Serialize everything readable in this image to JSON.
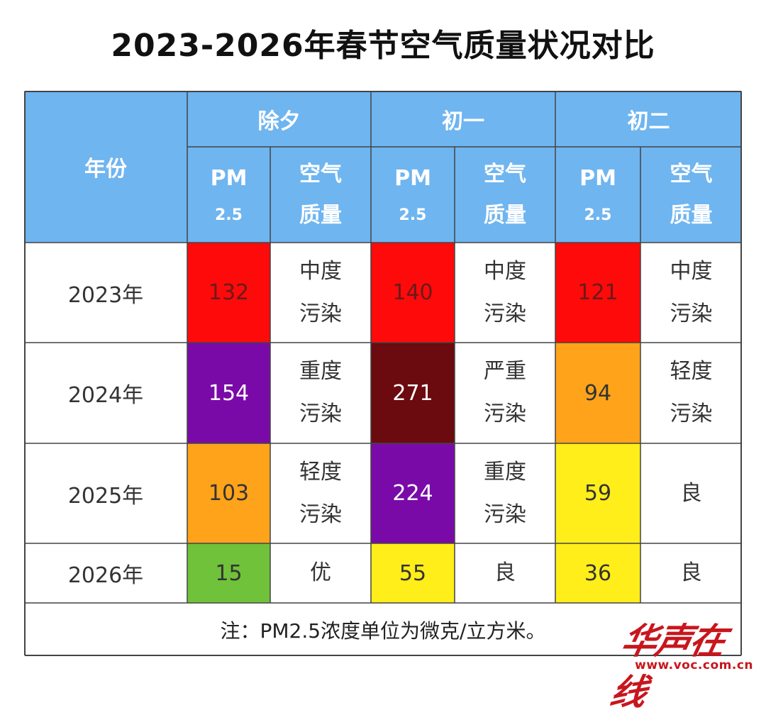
{
  "title": "2023-2026年春节空气质量状况对比",
  "header": {
    "year_label": "年份",
    "groups": [
      "除夕",
      "初一",
      "初二"
    ],
    "pm_label": "PM",
    "pm_sub": "2.5",
    "aq_line1": "空气",
    "aq_line2": "质量"
  },
  "rows": [
    {
      "year": "2023年",
      "cells": [
        {
          "pm": "132",
          "q1": "中度",
          "q2": "污染",
          "color": "#ff0a0a",
          "text": "#6a1a1a"
        },
        {
          "pm": "140",
          "q1": "中度",
          "q2": "污染",
          "color": "#ff0a0a",
          "text": "#6a1a1a"
        },
        {
          "pm": "121",
          "q1": "中度",
          "q2": "污染",
          "color": "#ff0a0a",
          "text": "#6a1a1a"
        }
      ]
    },
    {
      "year": "2024年",
      "cells": [
        {
          "pm": "154",
          "q1": "重度",
          "q2": "污染",
          "color": "#7a0aa8",
          "text": "#ffffff"
        },
        {
          "pm": "271",
          "q1": "严重",
          "q2": "污染",
          "color": "#6b0a0f",
          "text": "#ffffff"
        },
        {
          "pm": "94",
          "q1": "轻度",
          "q2": "污染",
          "color": "#ffa31a",
          "text": "#333333"
        }
      ]
    },
    {
      "year": "2025年",
      "cells": [
        {
          "pm": "103",
          "q1": "轻度",
          "q2": "污染",
          "color": "#ffa31a",
          "text": "#333333"
        },
        {
          "pm": "224",
          "q1": "重度",
          "q2": "污染",
          "color": "#7a0aa8",
          "text": "#ffffff"
        },
        {
          "pm": "59",
          "q1": "良",
          "q2": "",
          "color": "#ffee1a",
          "text": "#333333"
        }
      ]
    },
    {
      "year": "2026年",
      "cells": [
        {
          "pm": "15",
          "q1": "优",
          "q2": "",
          "color": "#6fc23a",
          "text": "#333333"
        },
        {
          "pm": "55",
          "q1": "良",
          "q2": "",
          "color": "#ffee1a",
          "text": "#333333"
        },
        {
          "pm": "36",
          "q1": "良",
          "q2": "",
          "color": "#ffee1a",
          "text": "#333333"
        }
      ]
    }
  ],
  "note": "注：PM2.5浓度单位为微克/立方米。",
  "watermark": {
    "brand": "华声在线",
    "site": "www.voc.com.cn"
  },
  "colors": {
    "header_bg": "#6fb5f0",
    "grid": "#444444"
  }
}
